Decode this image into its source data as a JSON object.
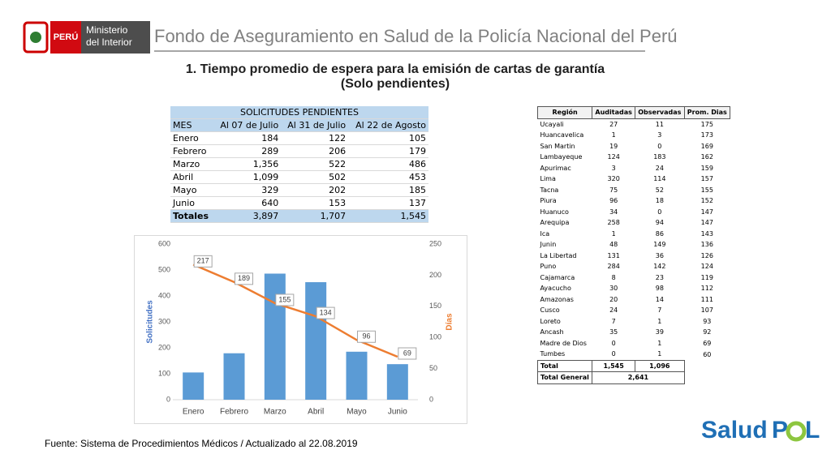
{
  "header": {
    "country": "PERÚ",
    "ministry": [
      "Ministerio",
      "del Interior"
    ],
    "title": "Fondo de Aseguramiento en Salud de la Policía Nacional del Perú"
  },
  "title": [
    "1. Tiempo promedio de espera para la emisión de cartas de garantía",
    "(Solo pendientes)"
  ],
  "table1": {
    "caption": "SOLICITUDES PENDIENTES",
    "columns": [
      "MES",
      "Al 07 de Julio",
      "Al 31 de Julio",
      "Al 22 de Agosto"
    ],
    "rows": [
      [
        "Enero",
        "184",
        "122",
        "105"
      ],
      [
        "Febrero",
        "289",
        "206",
        "179"
      ],
      [
        "Marzo",
        "1,356",
        "522",
        "486"
      ],
      [
        "Abril",
        "1,099",
        "502",
        "453"
      ],
      [
        "Mayo",
        "329",
        "202",
        "185"
      ],
      [
        "Junio",
        "640",
        "153",
        "137"
      ]
    ],
    "total": [
      "Totales",
      "3,897",
      "1,707",
      "1,545"
    ]
  },
  "chart_data": {
    "type": "bar",
    "categories": [
      "Enero",
      "Febrero",
      "Marzo",
      "Abril",
      "Mayo",
      "Junio"
    ],
    "ylabel": "Solicitudes",
    "y2label": "Días",
    "ylim": [
      0,
      600
    ],
    "yticks": [
      0,
      100,
      200,
      300,
      400,
      500,
      600
    ],
    "y2lim": [
      0,
      250
    ],
    "y2ticks": [
      0,
      50,
      100,
      150,
      200,
      250
    ],
    "series": [
      {
        "type": "bar",
        "color": "#5b9bd5",
        "values": [
          105,
          179,
          486,
          453,
          185,
          137
        ]
      },
      {
        "type": "line",
        "axis": "y2",
        "color": "#ed7d31",
        "values": [
          217,
          189,
          155,
          134,
          96,
          69
        ]
      }
    ]
  },
  "table2": {
    "columns": [
      "Región",
      "Auditadas",
      "Observadas",
      "Prom. Dias"
    ],
    "rows": [
      [
        "Ucayali",
        "27",
        "11",
        "175"
      ],
      [
        "Huancavelica",
        "1",
        "3",
        "173"
      ],
      [
        "San Martin",
        "19",
        "0",
        "169"
      ],
      [
        "Lambayeque",
        "124",
        "183",
        "162"
      ],
      [
        "Apurimac",
        "3",
        "24",
        "159"
      ],
      [
        "Lima",
        "320",
        "114",
        "157"
      ],
      [
        "Tacna",
        "75",
        "52",
        "155"
      ],
      [
        "Piura",
        "96",
        "18",
        "152"
      ],
      [
        "Huanuco",
        "34",
        "0",
        "147"
      ],
      [
        "Arequipa",
        "258",
        "94",
        "147"
      ],
      [
        "Ica",
        "1",
        "86",
        "143"
      ],
      [
        "Junin",
        "48",
        "149",
        "136"
      ],
      [
        "La Libertad",
        "131",
        "36",
        "126"
      ],
      [
        "Puno",
        "284",
        "142",
        "124"
      ],
      [
        "Cajamarca",
        "8",
        "23",
        "119"
      ],
      [
        "Ayacucho",
        "30",
        "98",
        "112"
      ],
      [
        "Amazonas",
        "20",
        "14",
        "111"
      ],
      [
        "Cusco",
        "24",
        "7",
        "107"
      ],
      [
        "Loreto",
        "7",
        "1",
        "93"
      ],
      [
        "Ancash",
        "35",
        "39",
        "92"
      ],
      [
        "Madre de Dios",
        "0",
        "1",
        "69"
      ],
      [
        "Tumbes",
        "0",
        "1",
        "60"
      ]
    ],
    "total": [
      "Total",
      "1,545",
      "1,096"
    ],
    "grand_total": [
      "Total General",
      "2,641"
    ]
  },
  "footer": "Fuente: Sistema de Procedimientos Médicos / Actualizado al 22.08.2019",
  "logo": [
    "Salud",
    "P",
    "L"
  ]
}
